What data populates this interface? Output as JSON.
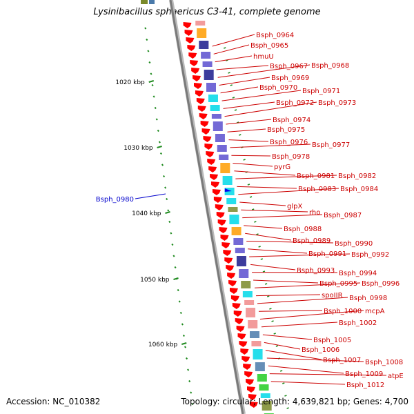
{
  "title": "Lysinibacillus sphaericus C3-41, complete genome",
  "footer": {
    "accession": "Accession: NC_010382",
    "topology": "Topology: circular; Length: 4,639,821 bp; Genes: 4,700"
  },
  "colors": {
    "backbone": "#7a7a7a",
    "cds_arrow": "#ff0000",
    "gene_label": "#cc0000",
    "leader_line": "#cc0000",
    "pseudo_label": "#0000cc",
    "ruler_tick": "#1e8a1e",
    "ruler_label": "#000000",
    "cog_blue": "#5a4fcf",
    "cog_navy": "#1a1a8c",
    "cog_cyan": "#00d8e8",
    "cog_pink": "#f08a8a",
    "cog_orange": "#ff9c00",
    "cog_olive": "#7a8a2a",
    "cog_green": "#22cc22",
    "cog_steel": "#4a7aaa"
  },
  "ruler": [
    {
      "label": "1020 kbp"
    },
    {
      "label": "1030 kbp"
    },
    {
      "label": "1040 kbp"
    },
    {
      "label": "1050 kbp"
    },
    {
      "label": "1060 kbp"
    }
  ],
  "pseudo_gene": {
    "label": "Bsph_0980"
  },
  "genes": [
    "Bsph_0964",
    "Bsph_0965",
    "hmuU",
    "Bsph_0967",
    "Bsph_0968",
    "Bsph_0969",
    "Bsph_0970",
    "Bsph_0971",
    "Bsph_0972",
    "Bsph_0973",
    "Bsph_0974",
    "Bsph_0975",
    "Bsph_0976",
    "Bsph_0977",
    "Bsph_0978",
    "pyrG",
    "Bsph_0981",
    "Bsph_0982",
    "Bsph_0983",
    "Bsph_0984",
    "glpX",
    "rho",
    "Bsph_0987",
    "Bsph_0988",
    "Bsph_0989",
    "Bsph_0990",
    "Bsph_0991",
    "Bsph_0992",
    "Bsph_0993",
    "Bsph_0994",
    "Bsph_0995",
    "Bsph_0996",
    "spoIIR",
    "Bsph_0998",
    "Bsph_1000",
    "mcpA",
    "Bsph_1002",
    "Bsph_1005",
    "Bsph_1006",
    "Bsph_1007",
    "Bsph_1008",
    "Bsph_1009",
    "atpE",
    "Bsph_1012"
  ]
}
